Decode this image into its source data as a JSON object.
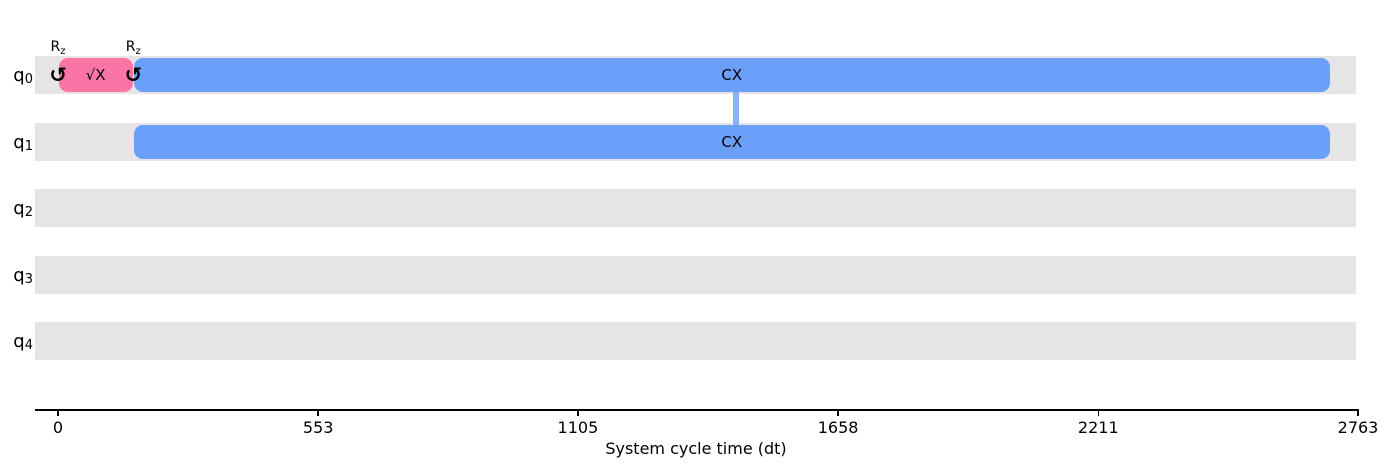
{
  "colors": {
    "background": "#ffffff",
    "track": "#e7e4e6",
    "blue": "#6ba0fa",
    "pink": "#fa74a6",
    "link": "rgba(107,160,250,0.8)",
    "text": "#000000",
    "axis": "#000000"
  },
  "chart_data": {
    "type": "timeline",
    "title": "",
    "xlabel": "System cycle time (dt)",
    "xlim": [
      0,
      2763
    ],
    "xticks": [
      0,
      553,
      1105,
      1658,
      2211,
      2763
    ],
    "legend": "none",
    "qubits": [
      {
        "name": "q",
        "sub": "0"
      },
      {
        "name": "q",
        "sub": "1"
      },
      {
        "name": "q",
        "sub": "2"
      },
      {
        "name": "q",
        "sub": "3"
      },
      {
        "name": "q",
        "sub": "4"
      }
    ],
    "gates": [
      {
        "name": "rz",
        "qubit": 0,
        "kind": "frame_change",
        "label": "R",
        "label_sub": "z",
        "symbol": "↺",
        "t": 0
      },
      {
        "name": "sx",
        "qubit": 0,
        "kind": "box",
        "label": "√X",
        "color": "pink",
        "t0": 0,
        "t1": 160
      },
      {
        "name": "rz",
        "qubit": 0,
        "kind": "frame_change",
        "label": "R",
        "label_sub": "z",
        "symbol": "↺",
        "t": 160
      },
      {
        "name": "cx",
        "qubit": 0,
        "kind": "box",
        "label": "CX",
        "color": "blue",
        "t0": 160,
        "t1": 2704
      },
      {
        "name": "cx",
        "qubit": 1,
        "kind": "box",
        "label": "CX",
        "color": "blue",
        "t0": 160,
        "t1": 2704
      }
    ],
    "links": [
      {
        "name": "cx-link",
        "from": 0,
        "to": 1,
        "t": 1440
      }
    ]
  }
}
